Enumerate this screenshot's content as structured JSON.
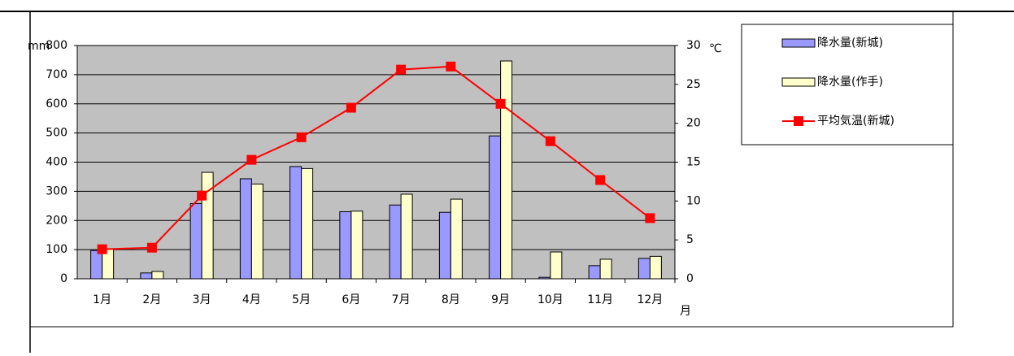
{
  "chart_data": {
    "type": "bar",
    "y_label": "mm",
    "y2_label": "℃",
    "x_label": "月",
    "categories": [
      "1月",
      "2月",
      "3月",
      "4月",
      "5月",
      "6月",
      "7月",
      "8月",
      "9月",
      "10月",
      "11月",
      "12月"
    ],
    "series": [
      {
        "name": "降水量(新城)",
        "type": "bar",
        "color": "#9999ff",
        "values": [
          97,
          20,
          258,
          343,
          385,
          230,
          253,
          228,
          490,
          5,
          45,
          70
        ]
      },
      {
        "name": "降水量(作手)",
        "type": "bar",
        "color": "#ffffcc",
        "values": [
          102,
          25,
          365,
          325,
          378,
          232,
          290,
          273,
          747,
          92,
          67,
          77
        ]
      },
      {
        "name": "平均気温(新城)",
        "type": "line",
        "axis": "y2",
        "color": "#ff0000",
        "values": [
          3.8,
          4.0,
          10.7,
          15.3,
          18.2,
          22.0,
          26.9,
          27.3,
          22.5,
          17.7,
          12.7,
          7.8
        ]
      }
    ],
    "ylim": [
      0,
      800
    ],
    "yticks": [
      0,
      100,
      200,
      300,
      400,
      500,
      600,
      700,
      800
    ],
    "y2lim": [
      0,
      30
    ],
    "y2ticks": [
      0,
      5,
      10,
      15,
      20,
      25,
      30
    ],
    "grid": true,
    "plot_background": "#c0c0c0",
    "legend": "top-right"
  }
}
